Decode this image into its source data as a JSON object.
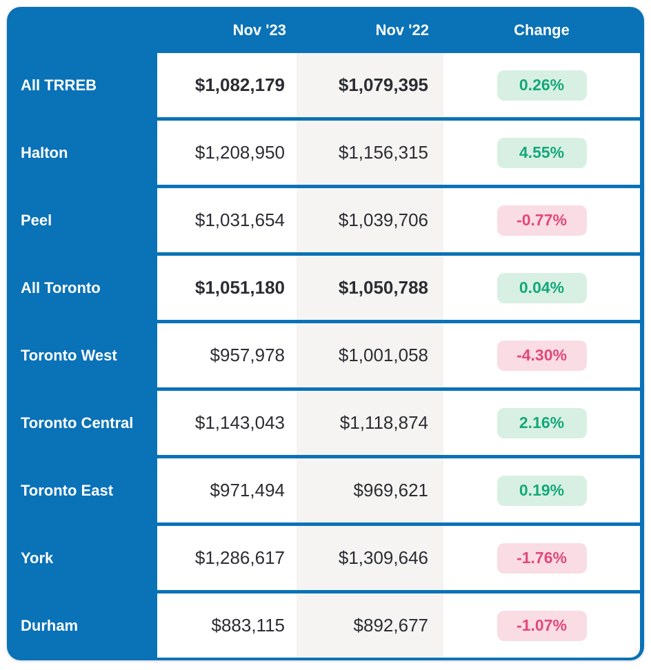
{
  "colors": {
    "card_blue": "#0A72B7",
    "positive_text": "#13A87A",
    "positive_bg": "#D8F0E3",
    "negative_text": "#E2487B",
    "negative_bg": "#FADCE4",
    "nov22_column_bg": "#F5F4F2",
    "value_text": "#2B2D33",
    "header_text": "#FFFFFF"
  },
  "chart_data": {
    "type": "table",
    "columns": [
      "",
      "Nov '23",
      "Nov '22",
      "Change"
    ],
    "rows": [
      {
        "label": "All TRREB",
        "nov23": "$1,082,179",
        "nov22": "$1,079,395",
        "change": "0.26%",
        "change_pct": 0.26,
        "direction": "up",
        "bold": true
      },
      {
        "label": "Halton",
        "nov23": "$1,208,950",
        "nov22": "$1,156,315",
        "change": "4.55%",
        "change_pct": 4.55,
        "direction": "up",
        "bold": false
      },
      {
        "label": "Peel",
        "nov23": "$1,031,654",
        "nov22": "$1,039,706",
        "change": "-0.77%",
        "change_pct": -0.77,
        "direction": "down",
        "bold": false
      },
      {
        "label": "All Toronto",
        "nov23": "$1,051,180",
        "nov22": "$1,050,788",
        "change": "0.04%",
        "change_pct": 0.04,
        "direction": "up",
        "bold": true
      },
      {
        "label": "Toronto West",
        "nov23": "$957,978",
        "nov22": "$1,001,058",
        "change": "-4.30%",
        "change_pct": -4.3,
        "direction": "down",
        "bold": false
      },
      {
        "label": "Toronto Central",
        "nov23": "$1,143,043",
        "nov22": "$1,118,874",
        "change": "2.16%",
        "change_pct": 2.16,
        "direction": "up",
        "bold": false
      },
      {
        "label": "Toronto East",
        "nov23": "$971,494",
        "nov22": "$969,621",
        "change": "0.19%",
        "change_pct": 0.19,
        "direction": "up",
        "bold": false
      },
      {
        "label": "York",
        "nov23": "$1,286,617",
        "nov22": "$1,309,646",
        "change": "-1.76%",
        "change_pct": -1.76,
        "direction": "down",
        "bold": false
      },
      {
        "label": "Durham",
        "nov23": "$883,115",
        "nov22": "$892,677",
        "change": "-1.07%",
        "change_pct": -1.07,
        "direction": "down",
        "bold": false
      }
    ]
  }
}
